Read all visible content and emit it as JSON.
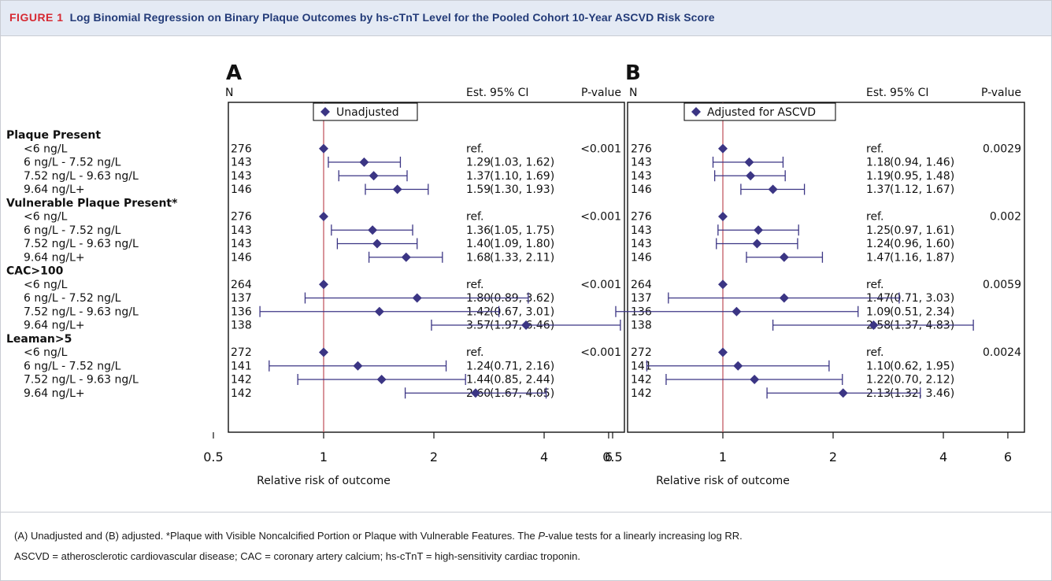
{
  "figure": {
    "label": "FIGURE 1",
    "title": "Log Binomial Regression on Binary Plaque Outcomes by hs-cTnT Level for the Pooled Cohort 10-Year ASCVD Risk Score"
  },
  "caption": {
    "line1_a": "(A) Unadjusted and (B) adjusted. *Plaque with Visible Noncalcified Portion or Plaque with Vulnerable Features. The ",
    "line1_italic": "P",
    "line1_b": "-value tests for a linearly increasing log RR.",
    "line2": "ASCVD = atherosclerotic cardiovascular disease; CAC = coronary artery calcium; hs-cTnT = high-sensitivity cardiac troponin."
  },
  "columns": {
    "n": "N",
    "est": "Est.",
    "ci": "95% CI",
    "p": "P-value"
  },
  "colors": {
    "marker": "#3b3584",
    "refline": "#c45a63",
    "text": "#111111"
  },
  "chart_data": [
    {
      "type": "forest",
      "panel": "A",
      "legend": "Unadjusted",
      "xlabel": "Relative risk of outcome",
      "xscale": "log",
      "xticks": [
        "0.5",
        "1",
        "2",
        "4",
        "6"
      ],
      "groups": [
        {
          "label": "Plaque Present",
          "p": "<0.001",
          "rows": [
            {
              "label": "<6 ng/L",
              "n": "276",
              "est": "ref.",
              "ci": "",
              "rr": 1,
              "lo": null,
              "hi": null
            },
            {
              "label": "6 ng/L - 7.52 ng/L",
              "n": "143",
              "est": "1.29",
              "ci": "(1.03, 1.62)",
              "rr": 1.29,
              "lo": 1.03,
              "hi": 1.62
            },
            {
              "label": "7.52 ng/L - 9.63 ng/L",
              "n": "143",
              "est": "1.37",
              "ci": "(1.10, 1.69)",
              "rr": 1.37,
              "lo": 1.1,
              "hi": 1.69
            },
            {
              "label": "9.64 ng/L+",
              "n": "146",
              "est": "1.59",
              "ci": "(1.30, 1.93)",
              "rr": 1.59,
              "lo": 1.3,
              "hi": 1.93
            }
          ]
        },
        {
          "label": "Vulnerable Plaque Present*",
          "p": "<0.001",
          "rows": [
            {
              "label": "<6 ng/L",
              "n": "276",
              "est": "ref.",
              "ci": "",
              "rr": 1,
              "lo": null,
              "hi": null
            },
            {
              "label": "6 ng/L - 7.52 ng/L",
              "n": "143",
              "est": "1.36",
              "ci": "(1.05, 1.75)",
              "rr": 1.36,
              "lo": 1.05,
              "hi": 1.75
            },
            {
              "label": "7.52 ng/L - 9.63 ng/L",
              "n": "143",
              "est": "1.40",
              "ci": "(1.09, 1.80)",
              "rr": 1.4,
              "lo": 1.09,
              "hi": 1.8
            },
            {
              "label": "9.64 ng/L+",
              "n": "146",
              "est": "1.68",
              "ci": "(1.33, 2.11)",
              "rr": 1.68,
              "lo": 1.33,
              "hi": 2.11
            }
          ]
        },
        {
          "label": "CAC>100",
          "p": "<0.001",
          "rows": [
            {
              "label": "<6 ng/L",
              "n": "264",
              "est": "ref.",
              "ci": "",
              "rr": 1,
              "lo": null,
              "hi": null
            },
            {
              "label": "6 ng/L - 7.52 ng/L",
              "n": "137",
              "est": "1.80",
              "ci": "(0.89, 3.62)",
              "rr": 1.8,
              "lo": 0.89,
              "hi": 3.62
            },
            {
              "label": "7.52 ng/L - 9.63 ng/L",
              "n": "136",
              "est": "1.42",
              "ci": "(0.67, 3.01)",
              "rr": 1.42,
              "lo": 0.67,
              "hi": 3.01
            },
            {
              "label": "9.64 ng/L+",
              "n": "138",
              "est": "3.57",
              "ci": "(1.97, 6.46)",
              "rr": 3.57,
              "lo": 1.97,
              "hi": 6.46
            }
          ]
        },
        {
          "label": "Leaman>5",
          "p": "<0.001",
          "rows": [
            {
              "label": "<6 ng/L",
              "n": "272",
              "est": "ref.",
              "ci": "",
              "rr": 1,
              "lo": null,
              "hi": null
            },
            {
              "label": "6 ng/L - 7.52 ng/L",
              "n": "141",
              "est": "1.24",
              "ci": "(0.71, 2.16)",
              "rr": 1.24,
              "lo": 0.71,
              "hi": 2.16
            },
            {
              "label": "7.52 ng/L - 9.63 ng/L",
              "n": "142",
              "est": "1.44",
              "ci": "(0.85, 2.44)",
              "rr": 1.44,
              "lo": 0.85,
              "hi": 2.44
            },
            {
              "label": "9.64 ng/L+",
              "n": "142",
              "est": "2.60",
              "ci": "(1.67, 4.05)",
              "rr": 2.6,
              "lo": 1.67,
              "hi": 4.05
            }
          ]
        }
      ]
    },
    {
      "type": "forest",
      "panel": "B",
      "legend": "Adjusted for ASCVD",
      "xlabel": "Relative risk of outcome",
      "xscale": "log",
      "xticks": [
        "0.5",
        "1",
        "2",
        "4",
        "6"
      ],
      "groups": [
        {
          "label": "Plaque Present",
          "p": "0.0029",
          "rows": [
            {
              "label": "<6 ng/L",
              "n": "276",
              "est": "ref.",
              "ci": "",
              "rr": 1,
              "lo": null,
              "hi": null
            },
            {
              "label": "6 ng/L - 7.52 ng/L",
              "n": "143",
              "est": "1.18",
              "ci": "(0.94, 1.46)",
              "rr": 1.18,
              "lo": 0.94,
              "hi": 1.46
            },
            {
              "label": "7.52 ng/L - 9.63 ng/L",
              "n": "143",
              "est": "1.19",
              "ci": "(0.95, 1.48)",
              "rr": 1.19,
              "lo": 0.95,
              "hi": 1.48
            },
            {
              "label": "9.64 ng/L+",
              "n": "146",
              "est": "1.37",
              "ci": "(1.12, 1.67)",
              "rr": 1.37,
              "lo": 1.12,
              "hi": 1.67
            }
          ]
        },
        {
          "label": "Vulnerable Plaque Present*",
          "p": "0.002",
          "rows": [
            {
              "label": "<6 ng/L",
              "n": "276",
              "est": "ref.",
              "ci": "",
              "rr": 1,
              "lo": null,
              "hi": null
            },
            {
              "label": "6 ng/L - 7.52 ng/L",
              "n": "143",
              "est": "1.25",
              "ci": "(0.97, 1.61)",
              "rr": 1.25,
              "lo": 0.97,
              "hi": 1.61
            },
            {
              "label": "7.52 ng/L - 9.63 ng/L",
              "n": "143",
              "est": "1.24",
              "ci": "(0.96, 1.60)",
              "rr": 1.24,
              "lo": 0.96,
              "hi": 1.6
            },
            {
              "label": "9.64 ng/L+",
              "n": "146",
              "est": "1.47",
              "ci": "(1.16, 1.87)",
              "rr": 1.47,
              "lo": 1.16,
              "hi": 1.87
            }
          ]
        },
        {
          "label": "CAC>100",
          "p": "0.0059",
          "rows": [
            {
              "label": "<6 ng/L",
              "n": "264",
              "est": "ref.",
              "ci": "",
              "rr": 1,
              "lo": null,
              "hi": null
            },
            {
              "label": "6 ng/L - 7.52 ng/L",
              "n": "137",
              "est": "1.47",
              "ci": "(0.71, 3.03)",
              "rr": 1.47,
              "lo": 0.71,
              "hi": 3.03
            },
            {
              "label": "7.52 ng/L - 9.63 ng/L",
              "n": "136",
              "est": "1.09",
              "ci": "(0.51, 2.34)",
              "rr": 1.09,
              "lo": 0.51,
              "hi": 2.34
            },
            {
              "label": "9.64 ng/L+",
              "n": "138",
              "est": "2.58",
              "ci": "(1.37, 4.83)",
              "rr": 2.58,
              "lo": 1.37,
              "hi": 4.83
            }
          ]
        },
        {
          "label": "Leaman>5",
          "p": "0.0024",
          "rows": [
            {
              "label": "<6 ng/L",
              "n": "272",
              "est": "ref.",
              "ci": "",
              "rr": 1,
              "lo": null,
              "hi": null
            },
            {
              "label": "6 ng/L - 7.52 ng/L",
              "n": "141",
              "est": "1.10",
              "ci": "(0.62, 1.95)",
              "rr": 1.1,
              "lo": 0.62,
              "hi": 1.95
            },
            {
              "label": "7.52 ng/L - 9.63 ng/L",
              "n": "142",
              "est": "1.22",
              "ci": "(0.70, 2.12)",
              "rr": 1.22,
              "lo": 0.7,
              "hi": 2.12
            },
            {
              "label": "9.64 ng/L+",
              "n": "142",
              "est": "2.13",
              "ci": "(1.32, 3.46)",
              "rr": 2.13,
              "lo": 1.32,
              "hi": 3.46
            }
          ]
        }
      ]
    }
  ]
}
